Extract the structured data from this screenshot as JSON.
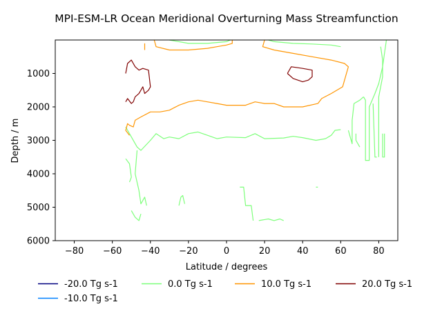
{
  "chart_data": {
    "type": "contour",
    "title": "MPI-ESM-LR Ocean Meridional Overturning Mass Streamfunction",
    "xlabel": "Latitude / degrees",
    "ylabel": "Depth / m",
    "xlim": [
      -90,
      90
    ],
    "ylim": [
      6000,
      0
    ],
    "y_inverted": true,
    "grid": false,
    "x_ticks": [
      -80,
      -60,
      -40,
      -20,
      0,
      20,
      40,
      60,
      80
    ],
    "x_tick_labels": [
      "−80",
      "−60",
      "−40",
      "−20",
      "0",
      "20",
      "40",
      "60",
      "80"
    ],
    "y_ticks": [
      1000,
      2000,
      3000,
      4000,
      5000,
      6000
    ],
    "y_tick_labels": [
      "1000",
      "2000",
      "3000",
      "4000",
      "5000",
      "6000"
    ],
    "legend_placement": "below plot",
    "series": [
      {
        "name": "-20.0 Tg s-1",
        "color": "#000080",
        "lines": []
      },
      {
        "name": "-10.0 Tg s-1",
        "color": "#0080ff",
        "lines": []
      },
      {
        "name": "0.0 Tg s-1",
        "color": "#7dff7a",
        "lines": [
          [
            [
              -30,
              0
            ],
            [
              -20,
              100
            ],
            [
              -10,
              100
            ],
            [
              0,
              50
            ],
            [
              2,
              0
            ]
          ],
          [
            [
              22,
              0
            ],
            [
              25,
              50
            ],
            [
              35,
              100
            ],
            [
              45,
              120
            ],
            [
              55,
              150
            ],
            [
              60,
              200
            ]
          ],
          [
            [
              -53,
              2600
            ],
            [
              -47,
              3200
            ],
            [
              -45,
              3300
            ],
            [
              -40,
              3000
            ],
            [
              -37,
              2800
            ],
            [
              -33,
              2950
            ],
            [
              -30,
              2900
            ],
            [
              -25,
              2950
            ],
            [
              -20,
              2800
            ],
            [
              -15,
              2750
            ],
            [
              -10,
              2850
            ],
            [
              -5,
              2950
            ],
            [
              0,
              2900
            ],
            [
              10,
              2920
            ],
            [
              15,
              2800
            ],
            [
              20,
              2950
            ],
            [
              30,
              2930
            ],
            [
              35,
              2880
            ],
            [
              40,
              2920
            ],
            [
              47,
              3000
            ],
            [
              52,
              2950
            ],
            [
              55,
              2850
            ],
            [
              57,
              2700
            ],
            [
              60,
              2680
            ]
          ],
          [
            [
              -53,
              3550
            ],
            [
              -51,
              3700
            ],
            [
              -50,
              4100
            ],
            [
              -51,
              4250
            ]
          ],
          [
            [
              -47,
              3300
            ],
            [
              -48,
              4000
            ],
            [
              -46,
              4500
            ],
            [
              -45,
              4900
            ],
            [
              -43,
              4700
            ],
            [
              -42,
              4950
            ]
          ],
          [
            [
              -50,
              5100
            ],
            [
              -48,
              5300
            ],
            [
              -46,
              5400
            ],
            [
              -45,
              5200
            ]
          ],
          [
            [
              -25,
              4950
            ],
            [
              -24,
              4700
            ],
            [
              -23,
              4650
            ],
            [
              -22,
              4900
            ]
          ],
          [
            [
              7,
              4400
            ],
            [
              9,
              4400
            ],
            [
              10,
              4950
            ],
            [
              13,
              4950
            ],
            [
              14,
              5400
            ]
          ],
          [
            [
              17,
              5400
            ],
            [
              22,
              5350
            ],
            [
              25,
              5400
            ],
            [
              28,
              5350
            ],
            [
              30,
              5400
            ]
          ],
          [
            [
              47,
              4400
            ],
            [
              48,
              4400
            ]
          ],
          [
            [
              64,
              2700
            ],
            [
              65,
              2900
            ],
            [
              66,
              3100
            ],
            [
              66,
              2400
            ],
            [
              67,
              1900
            ],
            [
              70,
              1800
            ],
            [
              71,
              1750
            ],
            [
              72,
              1700
            ]
          ],
          [
            [
              72,
              1700
            ],
            [
              73,
              1800
            ],
            [
              73,
              3600
            ],
            [
              75,
              3600
            ],
            [
              75,
              2000
            ],
            [
              78,
              1600
            ],
            [
              80,
              1300
            ],
            [
              82,
              800
            ],
            [
              83,
              400
            ],
            [
              84,
              0
            ]
          ],
          [
            [
              81,
              200
            ],
            [
              82,
              600
            ],
            [
              82,
              1100
            ],
            [
              80,
              1700
            ],
            [
              80,
              3500
            ]
          ],
          [
            [
              77,
              1900
            ],
            [
              78,
              3500
            ],
            [
              79,
              3500
            ]
          ],
          [
            [
              82,
              2800
            ],
            [
              82,
              3500
            ],
            [
              83,
              3500
            ],
            [
              83,
              2800
            ]
          ],
          [
            [
              68,
              2800
            ],
            [
              68,
              3000
            ],
            [
              70,
              3200
            ]
          ]
        ]
      },
      {
        "name": "10.0 Tg s-1",
        "color": "#ff9500",
        "lines": [
          [
            [
              -43,
              100
            ],
            [
              -43,
              300
            ]
          ],
          [
            [
              -38,
              0
            ],
            [
              -37,
              200
            ],
            [
              -30,
              300
            ],
            [
              -20,
              300
            ],
            [
              -10,
              250
            ],
            [
              -5,
              200
            ],
            [
              0,
              150
            ],
            [
              3,
              100
            ],
            [
              3,
              0
            ]
          ],
          [
            [
              20,
              0
            ],
            [
              19,
              200
            ],
            [
              25,
              300
            ],
            [
              35,
              400
            ],
            [
              45,
              500
            ],
            [
              55,
              600
            ],
            [
              62,
              700
            ],
            [
              64,
              800
            ],
            [
              61,
              1400
            ],
            [
              55,
              1600
            ],
            [
              50,
              1750
            ],
            [
              48,
              1900
            ],
            [
              40,
              2000
            ],
            [
              30,
              2000
            ],
            [
              25,
              1900
            ],
            [
              20,
              1900
            ],
            [
              15,
              1850
            ],
            [
              10,
              1950
            ],
            [
              0,
              1950
            ],
            [
              -5,
              1900
            ],
            [
              -10,
              1850
            ],
            [
              -15,
              1800
            ],
            [
              -20,
              1850
            ],
            [
              -25,
              1950
            ],
            [
              -30,
              2100
            ],
            [
              -35,
              2150
            ],
            [
              -40,
              2150
            ],
            [
              -45,
              2300
            ],
            [
              -48,
              2400
            ],
            [
              -49,
              2600
            ],
            [
              -51,
              2550
            ],
            [
              -52,
              2500
            ],
            [
              -53,
              2700
            ],
            [
              -51,
              2850
            ]
          ]
        ]
      },
      {
        "name": "20.0 Tg s-1",
        "color": "#800000",
        "lines": [
          [
            [
              -53,
              1000
            ],
            [
              -52,
              700
            ],
            [
              -50,
              600
            ],
            [
              -48,
              800
            ],
            [
              -46,
              900
            ],
            [
              -44,
              850
            ],
            [
              -41,
              900
            ],
            [
              -40,
              1400
            ],
            [
              -41,
              1500
            ],
            [
              -43,
              1600
            ],
            [
              -44,
              1400
            ],
            [
              -45,
              1500
            ],
            [
              -46,
              1600
            ],
            [
              -48,
              1700
            ],
            [
              -49,
              1850
            ],
            [
              -50,
              1900
            ],
            [
              -52,
              1750
            ],
            [
              -53,
              1850
            ]
          ],
          [
            [
              32,
              1000
            ],
            [
              34,
              800
            ],
            [
              40,
              850
            ],
            [
              45,
              900
            ],
            [
              45,
              1100
            ],
            [
              43,
              1200
            ],
            [
              40,
              1250
            ],
            [
              35,
              1150
            ],
            [
              32,
              1000
            ]
          ]
        ]
      }
    ]
  }
}
